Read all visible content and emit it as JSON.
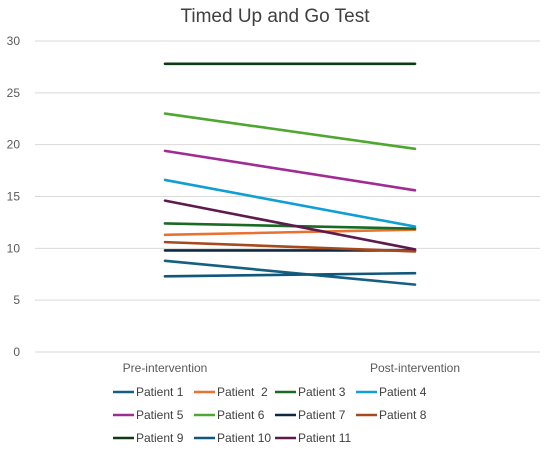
{
  "chart_data": {
    "type": "line",
    "title": "Timed Up and Go Test",
    "categories": [
      "Pre-intervention",
      "Post-intervention"
    ],
    "ylim": [
      0,
      30
    ],
    "y_ticks": [
      "0",
      "5",
      "10",
      "15",
      "20",
      "25",
      "30"
    ],
    "grid": true,
    "legend_position": "bottom",
    "series": [
      {
        "name": "Patient 1",
        "values": [
          8.8,
          6.5
        ],
        "color": "#156082"
      },
      {
        "name": "Patient  2",
        "values": [
          11.3,
          11.8
        ],
        "color": "#E97132"
      },
      {
        "name": "Patient 3",
        "values": [
          12.4,
          11.9
        ],
        "color": "#196B24"
      },
      {
        "name": "Patient 4",
        "values": [
          16.6,
          12.1
        ],
        "color": "#0F9ED5"
      },
      {
        "name": "Patient 5",
        "values": [
          19.4,
          15.6
        ],
        "color": "#A02B93"
      },
      {
        "name": "Patient 6",
        "values": [
          23.0,
          19.6
        ],
        "color": "#4EA72E"
      },
      {
        "name": "Patient 7",
        "values": [
          9.8,
          9.8
        ],
        "color": "#0E2841"
      },
      {
        "name": "Patient 8",
        "values": [
          10.6,
          9.7
        ],
        "color": "#A5491E"
      },
      {
        "name": "Patient 9",
        "values": [
          27.8,
          27.8
        ],
        "color": "#0E3B14"
      },
      {
        "name": "Patient 10",
        "values": [
          7.3,
          7.6
        ],
        "color": "#10577A"
      },
      {
        "name": "Patient 11",
        "values": [
          14.6,
          9.9
        ],
        "color": "#5C1A4F"
      }
    ]
  }
}
